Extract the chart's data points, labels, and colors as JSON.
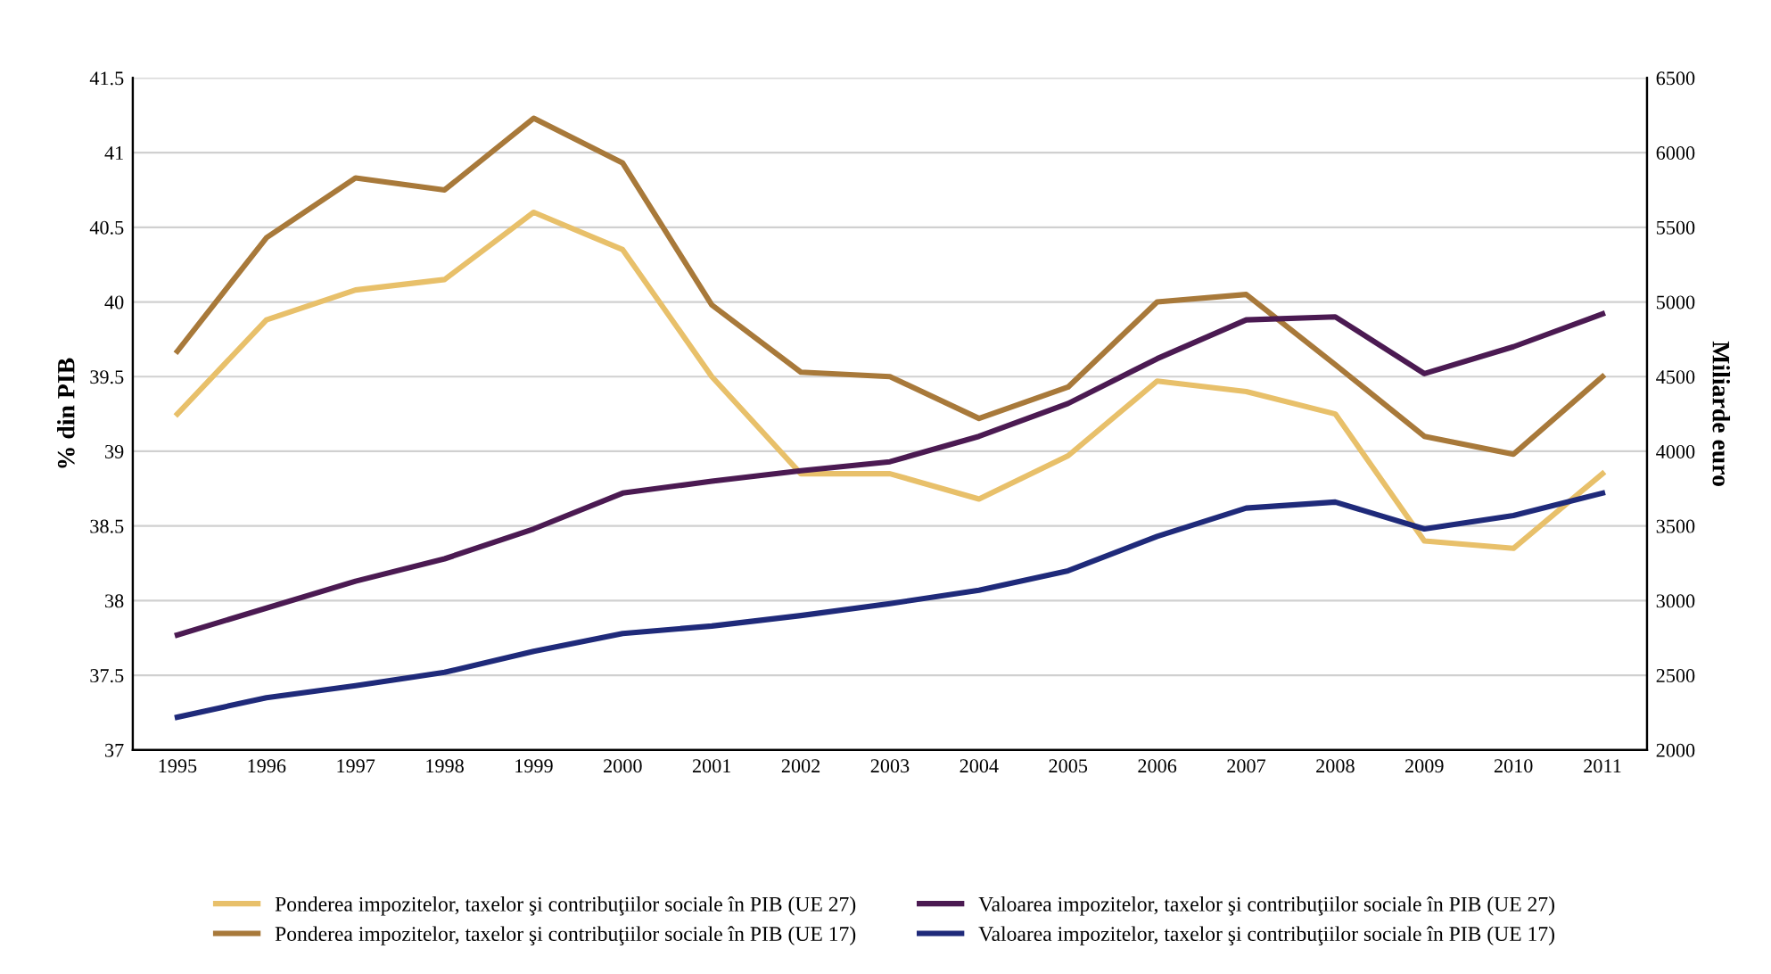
{
  "chart_data": {
    "type": "line",
    "ylabel": "% din PIB",
    "y2label": "Miliarde euro",
    "categories": [
      "1995",
      "1996",
      "1997",
      "1998",
      "1999",
      "2000",
      "2001",
      "2002",
      "2003",
      "2004",
      "2005",
      "2006",
      "2007",
      "2008",
      "2009",
      "2010",
      "2011"
    ],
    "series": [
      {
        "name": "Ponderea impozitelor, taxelor şi contribuţiilor sociale în PIB (UE 27)",
        "color": "#e8c06a",
        "values": [
          39.25,
          39.88,
          40.08,
          40.15,
          40.6,
          40.35,
          39.5,
          38.85,
          38.85,
          38.68,
          38.97,
          39.47,
          39.4,
          39.25,
          38.4,
          38.35,
          38.85
        ]
      },
      {
        "name": "Ponderea impozitelor, taxelor şi contribuţiilor sociale în PIB (UE 17)",
        "color": "#a8793a",
        "values": [
          39.67,
          40.43,
          40.83,
          40.75,
          41.23,
          40.93,
          39.98,
          39.53,
          39.5,
          39.22,
          39.43,
          40.0,
          40.05,
          39.58,
          39.1,
          38.98,
          39.5
        ]
      },
      {
        "name": "Valoarea impozitelor, taxelor şi contribuţiilor sociale în PIB (UE 27)",
        "color": "#4b1a52",
        "axis": "y2",
        "values": [
          2770,
          2950,
          3130,
          3280,
          3480,
          3720,
          3800,
          3870,
          3930,
          4100,
          4320,
          4620,
          4880,
          4900,
          4520,
          4700,
          4920
        ]
      },
      {
        "name": "Valoarea impozitelor, taxelor şi contribuţiilor sociale în PIB (UE 17)",
        "color": "#1f2a7a",
        "axis": "y2",
        "values": [
          2220,
          2350,
          2430,
          2520,
          2660,
          2780,
          2830,
          2900,
          2980,
          3070,
          3200,
          3430,
          3620,
          3660,
          3480,
          3570,
          3720
        ]
      }
    ],
    "ylim": [
      37,
      41.5
    ],
    "yticks": [
      37,
      37.5,
      38,
      38.5,
      39,
      39.5,
      40,
      40.5,
      41,
      41.5
    ],
    "y2lim": [
      2000,
      6500
    ],
    "y2ticks": [
      2000,
      2500,
      3000,
      3500,
      4000,
      4500,
      5000,
      5500,
      6000,
      6500
    ],
    "grid": "y",
    "legend": "bottom",
    "marker": "none",
    "line_style": "solid"
  }
}
